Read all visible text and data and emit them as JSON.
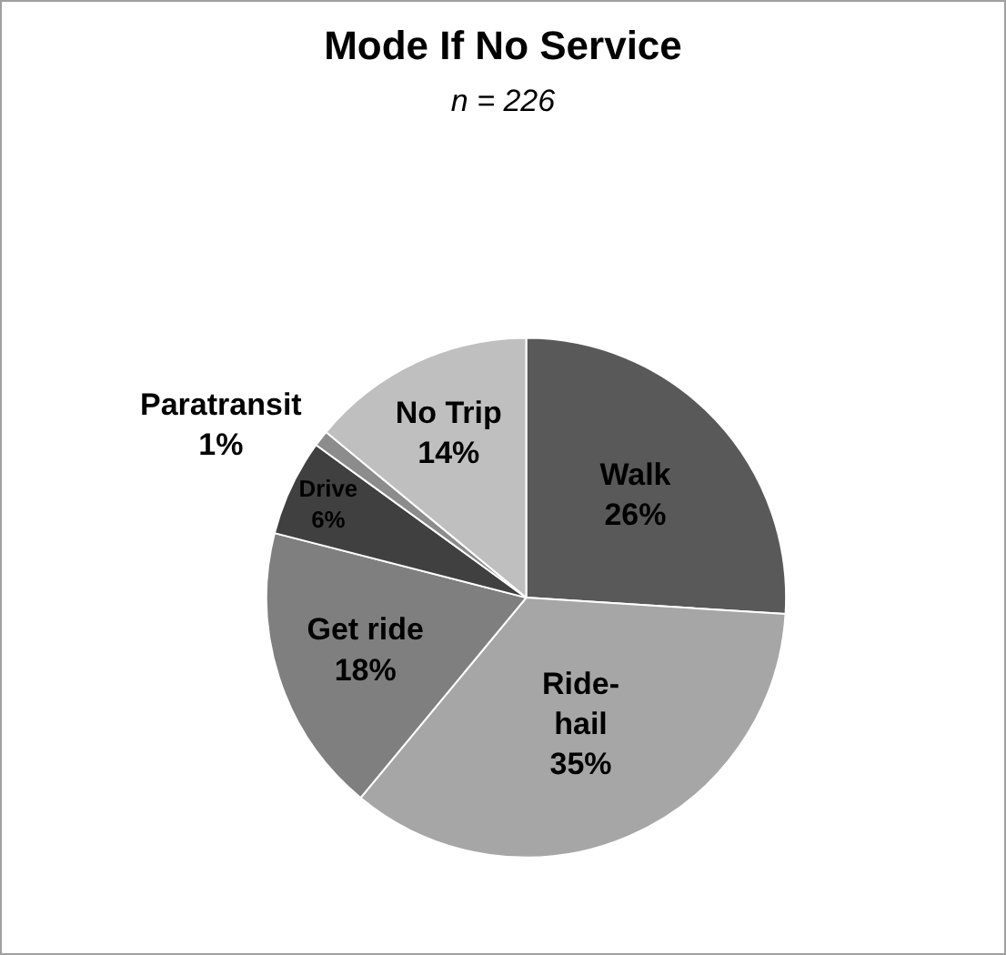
{
  "chart_data": {
    "type": "pie",
    "title": "Mode If No Service",
    "subtitle": "n = 226",
    "categories": [
      "Walk",
      "Ride-hail",
      "Get ride",
      "Drive",
      "Paratransit",
      "No Trip"
    ],
    "values": [
      26,
      35,
      18,
      6,
      1,
      14
    ],
    "value_labels": [
      "26%",
      "35%",
      "18%",
      "6%",
      "1%",
      "14%"
    ],
    "colors": [
      "#595959",
      "#a6a6a6",
      "#7f7f7f",
      "#404040",
      "#8c8c8c",
      "#bfbfbf"
    ],
    "legend": false
  }
}
